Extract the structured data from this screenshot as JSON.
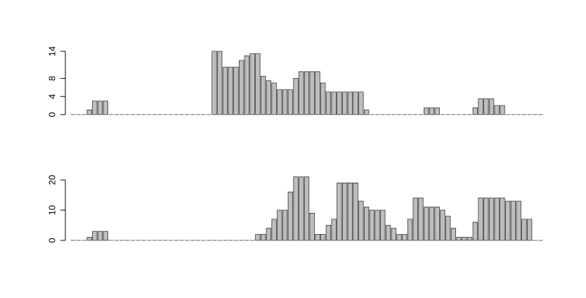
{
  "chart_data": [
    {
      "type": "bar",
      "color": "#bebebe",
      "values": [
        0,
        0,
        0,
        1,
        3,
        3,
        3,
        0,
        0,
        0,
        0,
        0,
        0,
        0,
        0,
        0,
        0,
        0,
        0,
        0,
        0,
        0,
        0,
        0,
        0,
        0,
        14,
        14,
        10.5,
        10.5,
        10.5,
        12,
        13,
        13.5,
        13.5,
        8.5,
        7.5,
        7,
        5.5,
        5.5,
        5.5,
        8,
        9.5,
        9.5,
        9.5,
        9.5,
        7,
        5,
        5,
        5,
        5,
        5,
        5,
        5,
        1,
        0,
        0,
        0,
        0,
        0,
        0,
        0,
        0,
        0,
        0,
        1.5,
        1.5,
        1.5,
        0,
        0,
        0,
        0,
        0,
        0,
        1.5,
        3.5,
        3.5,
        3.5,
        2,
        2,
        0,
        0,
        0,
        0,
        0,
        0,
        0
      ],
      "ylim": [
        0,
        14
      ],
      "yticks": [
        0,
        4,
        8,
        14
      ]
    },
    {
      "type": "bar",
      "color": "#bebebe",
      "values": [
        0,
        0,
        0,
        1,
        3,
        3,
        3,
        0,
        0,
        0,
        0,
        0,
        0,
        0,
        0,
        0,
        0,
        0,
        0,
        0,
        0,
        0,
        0,
        0,
        0,
        0,
        0,
        0,
        0,
        0,
        0,
        0,
        0,
        0,
        2,
        2,
        4,
        7,
        10,
        10,
        16,
        21,
        21,
        21,
        9,
        2,
        2,
        5,
        7,
        19,
        19,
        19,
        19,
        13,
        11,
        10,
        10,
        10,
        5,
        4,
        2,
        2,
        7,
        14,
        14,
        11,
        11,
        11,
        10,
        8,
        4,
        1,
        1,
        1,
        6,
        14,
        14,
        14,
        14,
        14,
        13,
        13,
        13,
        7,
        7,
        0,
        0
      ],
      "ylim": [
        0,
        21
      ],
      "yticks": [
        0,
        10,
        20
      ]
    }
  ]
}
